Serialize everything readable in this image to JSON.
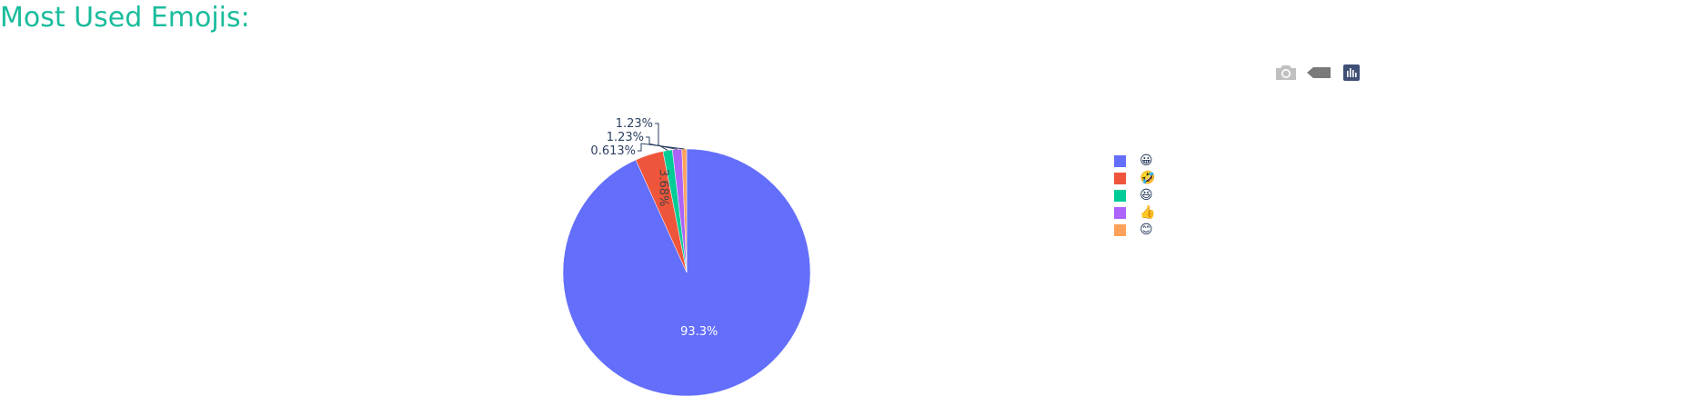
{
  "page": {
    "heading": "Most Used Emojis:"
  },
  "modebar": {
    "icons": [
      "camera-icon",
      "tag-icon",
      "plotly-logo-icon"
    ]
  },
  "chart_data": {
    "type": "pie",
    "title": "",
    "labels": [
      "😀",
      "🤣",
      "😆",
      "👍",
      "😊"
    ],
    "values": [
      93.3,
      3.68,
      1.23,
      1.23,
      0.613
    ],
    "text_labels": [
      "93.3%",
      "3.68%",
      "1.23%",
      "1.23%",
      "0.613%"
    ],
    "colors": [
      "#636efa",
      "#EF553B",
      "#00cc96",
      "#ab63fa",
      "#FFA15A"
    ],
    "legend_position": "right",
    "direction": "clockwise",
    "start_angle": "top"
  }
}
